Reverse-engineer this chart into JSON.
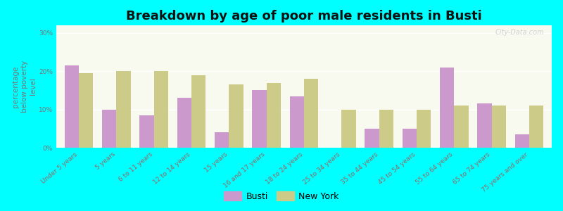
{
  "title": "Breakdown by age of poor male residents in Busti",
  "ylabel": "percentage\nbelow poverty\nlevel",
  "background_color": "#00ffff",
  "plot_bg_top": "#e8f0d0",
  "plot_bg_bottom": "#f8faf0",
  "categories": [
    "Under 5 years",
    "5 years",
    "6 to 11 years",
    "12 to 14 years",
    "15 years",
    "16 and 17 years",
    "18 to 24 years",
    "25 to 34 years",
    "35 to 44 years",
    "45 to 54 years",
    "55 to 64 years",
    "65 to 74 years",
    "75 years and over"
  ],
  "busti_values": [
    21.5,
    10.0,
    8.5,
    13.0,
    4.0,
    15.0,
    13.5,
    0.0,
    5.0,
    5.0,
    21.0,
    11.5,
    3.5
  ],
  "newyork_values": [
    19.5,
    20.0,
    20.0,
    19.0,
    16.5,
    17.0,
    18.0,
    10.0,
    10.0,
    10.0,
    11.0,
    11.0,
    11.0
  ],
  "busti_color": "#cc99cc",
  "newyork_color": "#cccc88",
  "ylim": [
    0,
    32
  ],
  "yticks": [
    0,
    10,
    20,
    30
  ],
  "ytick_labels": [
    "0%",
    "10%",
    "20%",
    "30%"
  ],
  "bar_width": 0.38,
  "title_fontsize": 13,
  "axis_label_fontsize": 7.5,
  "tick_fontsize": 6.5,
  "legend_fontsize": 9,
  "watermark": "City-Data.com"
}
